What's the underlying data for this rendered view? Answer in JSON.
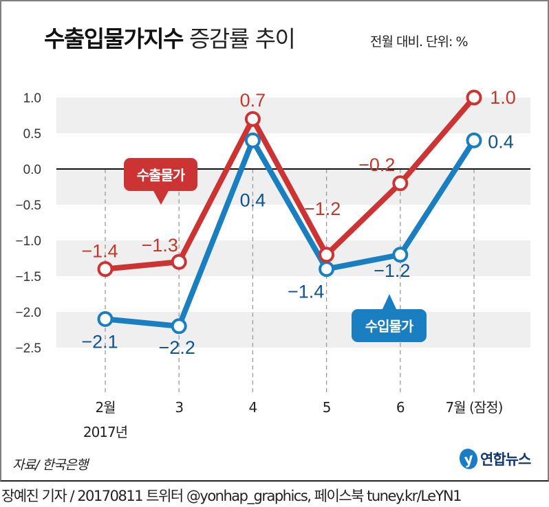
{
  "header": {
    "title_bold": "수출입물가지수",
    "title_light": "증감률 추이",
    "unit_note": "전월 대비. 단위: %"
  },
  "chart_data": {
    "type": "line",
    "title": "수출입물가지수 증감률 추이",
    "subtitle": "전월 대비. 단위: %",
    "categories": [
      "2월",
      "3",
      "4",
      "5",
      "6",
      "7월 (잠정)"
    ],
    "category_sublabels": [
      "2017년",
      "",
      "",
      "",
      "",
      ""
    ],
    "series": [
      {
        "name": "수출물가",
        "color": "#cc3333",
        "label_color": "#c0392b",
        "values": [
          -1.4,
          -1.3,
          0.7,
          -1.2,
          -0.2,
          1.0
        ]
      },
      {
        "name": "수입물가",
        "color": "#1a7fc1",
        "label_color": "#0b5394",
        "values": [
          -2.1,
          -2.2,
          0.4,
          -1.4,
          -1.2,
          0.4
        ]
      }
    ],
    "data_labels": {
      "수출물가": [
        "−1.4",
        "−1.3",
        "0.7",
        "−1.2",
        "−0.2",
        "1.0"
      ],
      "수입물가": [
        "−2.1",
        "−2.2",
        "0.4",
        "−1.4",
        "−1.2",
        "0.4"
      ]
    },
    "yticks": [
      1.0,
      0.5,
      0.0,
      -0.5,
      -1.0,
      -1.5,
      -2.0,
      -2.5
    ],
    "ytick_labels": [
      "1.0",
      "0.5",
      "0.0",
      "−0.5",
      "−1.0",
      "−1.5",
      "−2.0",
      "−2.5"
    ],
    "ylim": [
      -2.5,
      1.0
    ],
    "xlabel": "",
    "ylabel": "",
    "grid": "alternating horizontal bands",
    "legend": "callout bubbles"
  },
  "footer": {
    "source": "자료/ 한국은행",
    "logo_mark": "y",
    "logo_name": "연합뉴스",
    "credit": "장예진 기자 / 20170811 트위터 @yonhap_graphics, 페이스북 tuney.kr/LeYN1"
  }
}
